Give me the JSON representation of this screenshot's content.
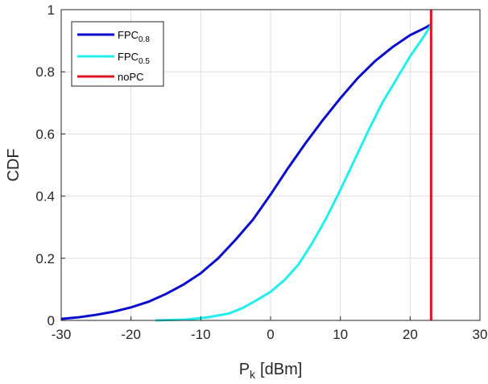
{
  "chart_data": {
    "type": "line",
    "xlabel": "P",
    "xlabel_sub": "k",
    "xlabel_unit": "[dBm]",
    "ylabel": "CDF",
    "xlim": [
      -30,
      30
    ],
    "ylim": [
      0,
      1
    ],
    "xticks": [
      -30,
      -20,
      -10,
      0,
      10,
      20,
      30
    ],
    "xtick_labels": [
      "-30",
      "-20",
      "-10",
      "0",
      "10",
      "20",
      "30"
    ],
    "yticks": [
      0,
      0.2,
      0.4,
      0.6,
      0.8,
      1
    ],
    "ytick_labels": [
      "0",
      "0.2",
      "0.4",
      "0.6",
      "0.8",
      "1"
    ],
    "grid": true,
    "legend_position": "top-left",
    "series": [
      {
        "name": "FPC",
        "name_sub": "0.8",
        "color": "#0a0acc",
        "x": [
          -30,
          -27.5,
          -25,
          -22.5,
          -20,
          -17.5,
          -15,
          -12.5,
          -10,
          -7.5,
          -5,
          -2.5,
          0,
          2.5,
          5,
          7.5,
          10,
          12.5,
          15,
          17.5,
          20,
          22,
          23
        ],
        "y": [
          0.005,
          0.01,
          0.018,
          0.028,
          0.042,
          0.06,
          0.085,
          0.115,
          0.152,
          0.2,
          0.26,
          0.325,
          0.405,
          0.49,
          0.57,
          0.645,
          0.715,
          0.78,
          0.835,
          0.88,
          0.918,
          0.94,
          0.952
        ]
      },
      {
        "name": "FPC",
        "name_sub": "0.5",
        "color": "#22eeee",
        "x": [
          -16.5,
          -12,
          -9,
          -6,
          -4,
          -2,
          0,
          2,
          4,
          6,
          8,
          10,
          12,
          14,
          16,
          18,
          20,
          22,
          23
        ],
        "y": [
          0,
          0.003,
          0.01,
          0.022,
          0.04,
          0.065,
          0.092,
          0.13,
          0.18,
          0.25,
          0.33,
          0.42,
          0.515,
          0.61,
          0.7,
          0.775,
          0.85,
          0.915,
          0.952
        ]
      },
      {
        "name": "noPC",
        "name_sub": "",
        "color": "#e01020",
        "x": [
          23,
          23
        ],
        "y": [
          0,
          1
        ]
      }
    ]
  }
}
